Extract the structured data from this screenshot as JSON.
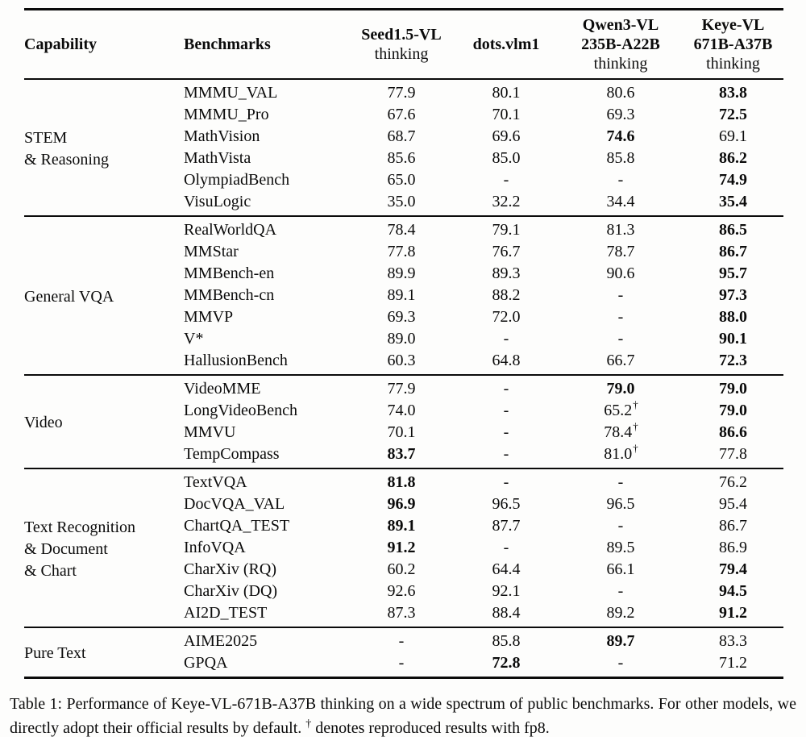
{
  "table": {
    "header": {
      "capability": "Capability",
      "benchmarks": "Benchmarks",
      "models": [
        {
          "lines": [
            "Seed1.5-VL"
          ],
          "suffix": "thinking"
        },
        {
          "lines": [
            "dots.vlm1"
          ],
          "suffix": ""
        },
        {
          "lines": [
            "Qwen3-VL",
            "235B-A22B"
          ],
          "suffix": "thinking"
        },
        {
          "lines": [
            "Keye-VL",
            "671B-A37B"
          ],
          "suffix": "thinking"
        }
      ]
    },
    "sections": [
      {
        "capability_lines": [
          "STEM",
          "& Reasoning"
        ],
        "rows": [
          {
            "benchmark": "MMMU_VAL",
            "values": [
              {
                "text": "77.9",
                "bold": false
              },
              {
                "text": "80.1",
                "bold": false
              },
              {
                "text": "80.6",
                "bold": false
              },
              {
                "text": "83.8",
                "bold": true
              }
            ]
          },
          {
            "benchmark": "MMMU_Pro",
            "values": [
              {
                "text": "67.6",
                "bold": false
              },
              {
                "text": "70.1",
                "bold": false
              },
              {
                "text": "69.3",
                "bold": false
              },
              {
                "text": "72.5",
                "bold": true
              }
            ]
          },
          {
            "benchmark": "MathVision",
            "values": [
              {
                "text": "68.7",
                "bold": false
              },
              {
                "text": "69.6",
                "bold": false
              },
              {
                "text": "74.6",
                "bold": true
              },
              {
                "text": "69.1",
                "bold": false
              }
            ]
          },
          {
            "benchmark": "MathVista",
            "values": [
              {
                "text": "85.6",
                "bold": false
              },
              {
                "text": "85.0",
                "bold": false
              },
              {
                "text": "85.8",
                "bold": false
              },
              {
                "text": "86.2",
                "bold": true
              }
            ]
          },
          {
            "benchmark": "OlympiadBench",
            "values": [
              {
                "text": "65.0",
                "bold": false
              },
              {
                "text": "-",
                "bold": false
              },
              {
                "text": "-",
                "bold": false
              },
              {
                "text": "74.9",
                "bold": true
              }
            ]
          },
          {
            "benchmark": "VisuLogic",
            "values": [
              {
                "text": "35.0",
                "bold": false
              },
              {
                "text": "32.2",
                "bold": false
              },
              {
                "text": "34.4",
                "bold": false
              },
              {
                "text": "35.4",
                "bold": true
              }
            ]
          }
        ]
      },
      {
        "capability_lines": [
          "General VQA"
        ],
        "rows": [
          {
            "benchmark": "RealWorldQA",
            "values": [
              {
                "text": "78.4",
                "bold": false
              },
              {
                "text": "79.1",
                "bold": false
              },
              {
                "text": "81.3",
                "bold": false
              },
              {
                "text": "86.5",
                "bold": true
              }
            ]
          },
          {
            "benchmark": "MMStar",
            "values": [
              {
                "text": "77.8",
                "bold": false
              },
              {
                "text": "76.7",
                "bold": false
              },
              {
                "text": "78.7",
                "bold": false
              },
              {
                "text": "86.7",
                "bold": true
              }
            ]
          },
          {
            "benchmark": "MMBench-en",
            "values": [
              {
                "text": "89.9",
                "bold": false
              },
              {
                "text": "89.3",
                "bold": false
              },
              {
                "text": "90.6",
                "bold": false
              },
              {
                "text": "95.7",
                "bold": true
              }
            ]
          },
          {
            "benchmark": "MMBench-cn",
            "values": [
              {
                "text": "89.1",
                "bold": false
              },
              {
                "text": "88.2",
                "bold": false
              },
              {
                "text": "-",
                "bold": false
              },
              {
                "text": "97.3",
                "bold": true
              }
            ]
          },
          {
            "benchmark": "MMVP",
            "values": [
              {
                "text": "69.3",
                "bold": false
              },
              {
                "text": "72.0",
                "bold": false
              },
              {
                "text": "-",
                "bold": false
              },
              {
                "text": "88.0",
                "bold": true
              }
            ]
          },
          {
            "benchmark": "V*",
            "values": [
              {
                "text": "89.0",
                "bold": false
              },
              {
                "text": "-",
                "bold": false
              },
              {
                "text": "-",
                "bold": false
              },
              {
                "text": "90.1",
                "bold": true
              }
            ]
          },
          {
            "benchmark": "HallusionBench",
            "values": [
              {
                "text": "60.3",
                "bold": false
              },
              {
                "text": "64.8",
                "bold": false
              },
              {
                "text": "66.7",
                "bold": false
              },
              {
                "text": "72.3",
                "bold": true
              }
            ]
          }
        ]
      },
      {
        "capability_lines": [
          "Video"
        ],
        "rows": [
          {
            "benchmark": "VideoMME",
            "values": [
              {
                "text": "77.9",
                "bold": false
              },
              {
                "text": "-",
                "bold": false
              },
              {
                "text": "79.0",
                "bold": true
              },
              {
                "text": "79.0",
                "bold": true
              }
            ]
          },
          {
            "benchmark": "LongVideoBench",
            "values": [
              {
                "text": "74.0",
                "bold": false
              },
              {
                "text": "-",
                "bold": false
              },
              {
                "text": "65.2",
                "bold": false,
                "sup": "†"
              },
              {
                "text": "79.0",
                "bold": true
              }
            ]
          },
          {
            "benchmark": "MMVU",
            "values": [
              {
                "text": "70.1",
                "bold": false
              },
              {
                "text": "-",
                "bold": false
              },
              {
                "text": "78.4",
                "bold": false,
                "sup": "†"
              },
              {
                "text": "86.6",
                "bold": true
              }
            ]
          },
          {
            "benchmark": "TempCompass",
            "values": [
              {
                "text": "83.7",
                "bold": true
              },
              {
                "text": "-",
                "bold": false
              },
              {
                "text": "81.0",
                "bold": false,
                "sup": "†"
              },
              {
                "text": "77.8",
                "bold": false
              }
            ]
          }
        ]
      },
      {
        "capability_lines": [
          "Text Recognition",
          "& Document",
          "& Chart"
        ],
        "rows": [
          {
            "benchmark": "TextVQA",
            "values": [
              {
                "text": "81.8",
                "bold": true
              },
              {
                "text": "-",
                "bold": false
              },
              {
                "text": "-",
                "bold": false
              },
              {
                "text": "76.2",
                "bold": false
              }
            ]
          },
          {
            "benchmark": "DocVQA_VAL",
            "values": [
              {
                "text": "96.9",
                "bold": true
              },
              {
                "text": "96.5",
                "bold": false
              },
              {
                "text": "96.5",
                "bold": false
              },
              {
                "text": "95.4",
                "bold": false
              }
            ]
          },
          {
            "benchmark": "ChartQA_TEST",
            "values": [
              {
                "text": "89.1",
                "bold": true
              },
              {
                "text": "87.7",
                "bold": false
              },
              {
                "text": "-",
                "bold": false
              },
              {
                "text": "86.7",
                "bold": false
              }
            ]
          },
          {
            "benchmark": "InfoVQA",
            "values": [
              {
                "text": "91.2",
                "bold": true
              },
              {
                "text": "-",
                "bold": false
              },
              {
                "text": "89.5",
                "bold": false
              },
              {
                "text": "86.9",
                "bold": false
              }
            ]
          },
          {
            "benchmark": "CharXiv (RQ)",
            "values": [
              {
                "text": "60.2",
                "bold": false
              },
              {
                "text": "64.4",
                "bold": false
              },
              {
                "text": "66.1",
                "bold": false
              },
              {
                "text": "79.4",
                "bold": true
              }
            ]
          },
          {
            "benchmark": "CharXiv (DQ)",
            "values": [
              {
                "text": "92.6",
                "bold": false
              },
              {
                "text": "92.1",
                "bold": false
              },
              {
                "text": "-",
                "bold": false
              },
              {
                "text": "94.5",
                "bold": true
              }
            ]
          },
          {
            "benchmark": "AI2D_TEST",
            "values": [
              {
                "text": "87.3",
                "bold": false
              },
              {
                "text": "88.4",
                "bold": false
              },
              {
                "text": "89.2",
                "bold": false
              },
              {
                "text": "91.2",
                "bold": true
              }
            ]
          }
        ]
      },
      {
        "capability_lines": [
          "Pure Text"
        ],
        "rows": [
          {
            "benchmark": "AIME2025",
            "values": [
              {
                "text": "-",
                "bold": false
              },
              {
                "text": "85.8",
                "bold": false
              },
              {
                "text": "89.7",
                "bold": true
              },
              {
                "text": "83.3",
                "bold": false
              }
            ]
          },
          {
            "benchmark": "GPQA",
            "values": [
              {
                "text": "-",
                "bold": false
              },
              {
                "text": "72.8",
                "bold": true
              },
              {
                "text": "-",
                "bold": false
              },
              {
                "text": "71.2",
                "bold": false
              }
            ]
          }
        ]
      }
    ]
  },
  "caption": {
    "part1": "Table 1: Performance of Keye-VL-671B-A37B thinking on a wide spectrum of public benchmarks. For other models, we directly adopt their official results by default. ",
    "dagger": "†",
    "part2": " denotes reproduced results with fp8."
  }
}
